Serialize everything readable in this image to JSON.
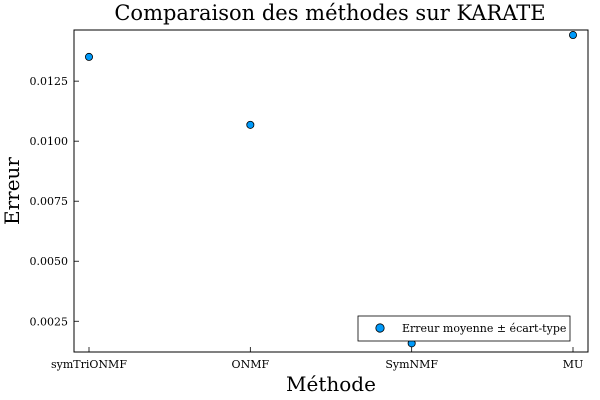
{
  "chart_data": {
    "type": "scatter",
    "title": "Comparaison des méthodes sur KARATE",
    "xlabel": "Méthode",
    "ylabel": "Erreur",
    "categories": [
      "symTriONMF",
      "ONMF",
      "SymNMF",
      "MU"
    ],
    "series": [
      {
        "name": "Erreur moyenne ± écart-type",
        "values": [
          0.01351,
          0.01068,
          0.00158,
          0.01442
        ],
        "color": "#009AFA"
      }
    ],
    "ylim": [
      0.00122,
      0.01463
    ],
    "yticks": [
      0.0025,
      0.005,
      0.0075,
      0.01,
      0.0125
    ],
    "ytick_labels": [
      "0.0025",
      "0.0050",
      "0.0075",
      "0.0100",
      "0.0125"
    ],
    "grid": false,
    "legend_position": "bottom-right"
  }
}
